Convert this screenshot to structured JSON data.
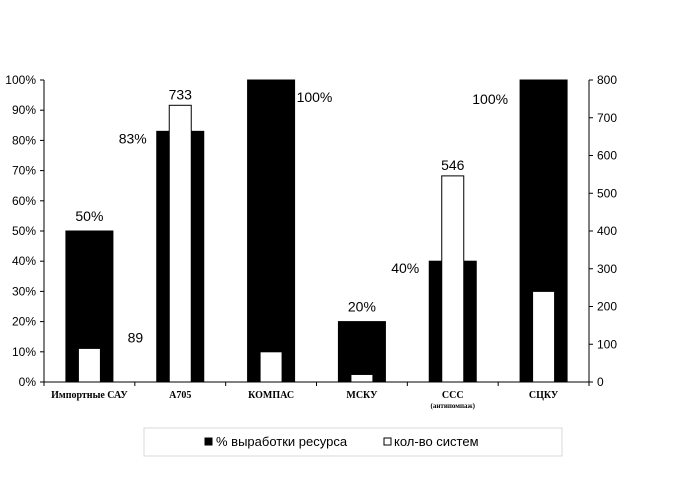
{
  "chart_data": {
    "type": "bar",
    "categories": [
      {
        "label": "Импортные САУ",
        "sublabel": ""
      },
      {
        "label": "А705",
        "sublabel": ""
      },
      {
        "label": "КОМПАС",
        "sublabel": ""
      },
      {
        "label": "МСКУ",
        "sublabel": ""
      },
      {
        "label": "ССС",
        "sublabel": "(антипомпаж)"
      },
      {
        "label": "СЦКУ",
        "sublabel": ""
      }
    ],
    "series": [
      {
        "name": "% выработки ресурса",
        "axis": "left",
        "color": "#000000",
        "values": [
          50,
          83,
          100,
          20,
          40,
          100
        ],
        "labels": [
          "50%",
          "83%",
          "100%",
          "20%",
          "40%",
          "100%"
        ]
      },
      {
        "name": "кол-во систем",
        "axis": "right",
        "color": "#ffffff",
        "values": [
          89,
          733,
          80,
          20,
          546,
          240
        ],
        "labels": [
          "89",
          "733",
          "",
          "",
          "546",
          ""
        ]
      }
    ],
    "left_axis": {
      "ylim": [
        0,
        100
      ],
      "ticks": [
        "0%",
        "10%",
        "20%",
        "30%",
        "40%",
        "50%",
        "60%",
        "70%",
        "80%",
        "90%",
        "100%"
      ]
    },
    "right_axis": {
      "ylim": [
        0,
        800
      ],
      "ticks": [
        "0",
        "100",
        "200",
        "300",
        "400",
        "500",
        "600",
        "700",
        "800"
      ]
    },
    "legend": {
      "placement": "bottom",
      "items": [
        "% выработки ресурса",
        "кол-во систем"
      ]
    },
    "grid": false
  }
}
